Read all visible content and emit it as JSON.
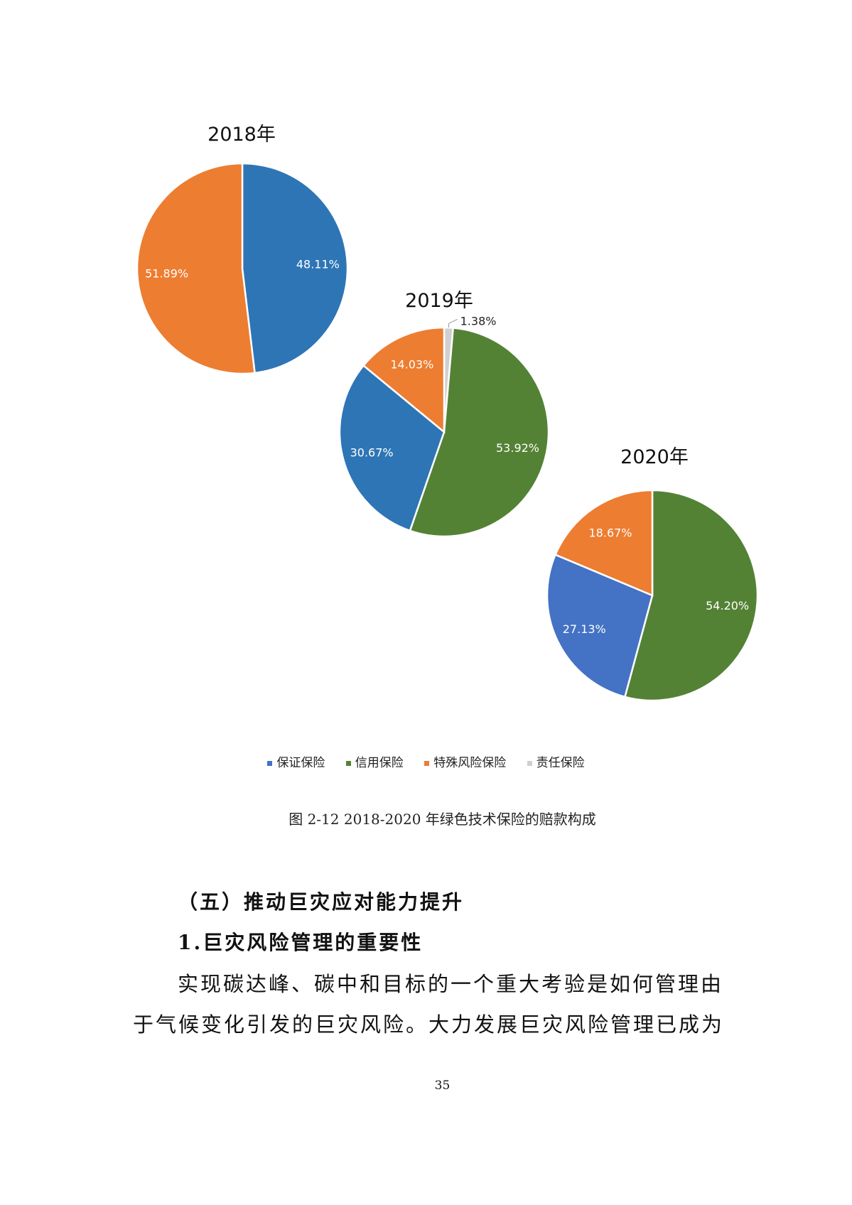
{
  "chart_data": [
    {
      "type": "pie",
      "title": "2018年",
      "slices": [
        {
          "category": "保证保险",
          "value": 48.11,
          "label": "48.11%",
          "color": "#2e75b6"
        },
        {
          "category": "特殊风险保险",
          "value": 51.89,
          "label": "51.89%",
          "color": "#ed7d31"
        }
      ]
    },
    {
      "type": "pie",
      "title": "2019年",
      "slices": [
        {
          "category": "责任保险",
          "value": 1.38,
          "label": "1.38%",
          "color": "#d0d0d0"
        },
        {
          "category": "信用保险",
          "value": 53.92,
          "label": "53.92%",
          "color": "#548235"
        },
        {
          "category": "保证保险",
          "value": 30.67,
          "label": "30.67%",
          "color": "#2e75b6"
        },
        {
          "category": "特殊风险保险",
          "value": 14.03,
          "label": "14.03%",
          "color": "#ed7d31"
        }
      ]
    },
    {
      "type": "pie",
      "title": "2020年",
      "slices": [
        {
          "category": "信用保险",
          "value": 54.2,
          "label": "54.20%",
          "color": "#548235"
        },
        {
          "category": "保证保险",
          "value": 27.13,
          "label": "27.13%",
          "color": "#4472c4"
        },
        {
          "category": "特殊风险保险",
          "value": 18.67,
          "label": "18.67%",
          "color": "#ed7d31"
        }
      ]
    }
  ],
  "legend": [
    {
      "label": "保证保险",
      "color": "#4472c4"
    },
    {
      "label": "信用保险",
      "color": "#548235"
    },
    {
      "label": "特殊风险保险",
      "color": "#ed7d31"
    },
    {
      "label": "责任保险",
      "color": "#d0d0d0"
    }
  ],
  "caption": "图 2-12   2018-2020 年绿色技术保险的赔款构成",
  "section_heading": "（五）推动巨灾应对能力提升",
  "subheading": "1.巨灾风险管理的重要性",
  "paragraph_lines": [
    "实现碳达峰、碳中和目标的一个重大考验是如何管理由",
    "于气候变化引发的巨灾风险。大力发展巨灾风险管理已成为"
  ],
  "page_number": "35"
}
